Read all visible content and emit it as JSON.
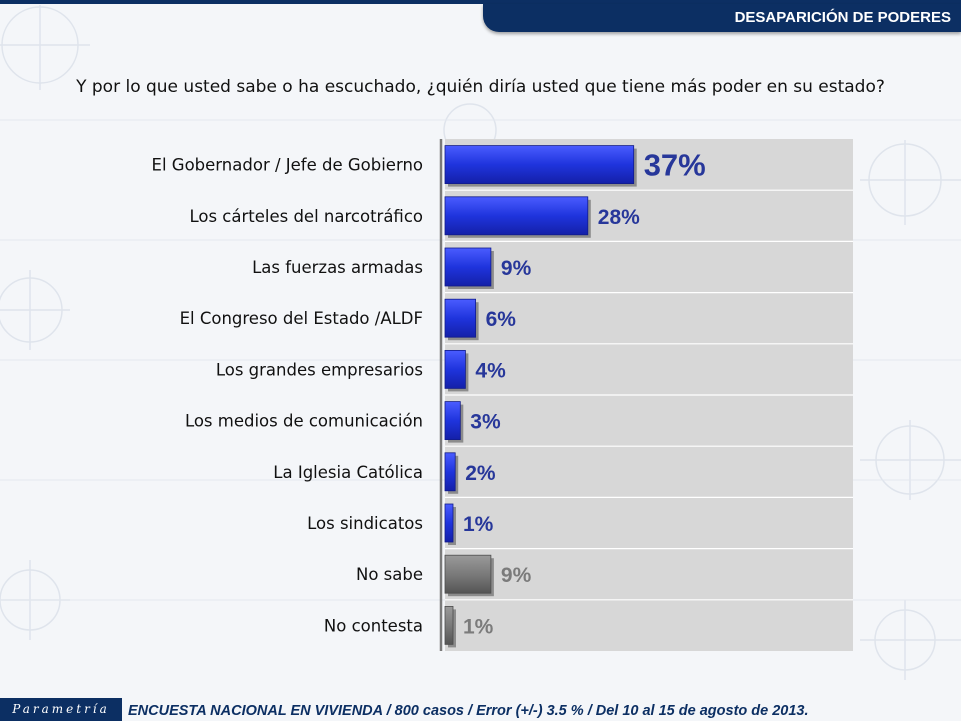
{
  "header": {
    "section_title": "DESAPARICIÓN DE PODERES"
  },
  "question": "Y por lo que usted sabe o ha escuchado, ¿quién diría usted que tiene más poder en su estado?",
  "chart_data": {
    "type": "bar",
    "orientation": "horizontal",
    "title": "Y por lo que usted sabe o ha escuchado, ¿quién diría usted que tiene más poder en su estado?",
    "xlabel": "",
    "ylabel": "",
    "xlim": [
      0,
      80
    ],
    "value_suffix": "%",
    "categories": [
      "El Gobernador / Jefe de Gobierno",
      "Los cárteles del narcotráfico",
      "Las fuerzas armadas",
      "El Congreso del Estado /ALDF",
      "Los grandes empresarios",
      "Los medios de comunicación",
      "La Iglesia Católica",
      "Los sindicatos",
      "No sabe",
      "No contesta"
    ],
    "values": [
      37,
      28,
      9,
      6,
      4,
      3,
      2,
      1,
      9,
      1
    ],
    "labels": [
      "37%",
      "28%",
      "9%",
      "6%",
      "4%",
      "3%",
      "2%",
      "1%",
      "9%",
      "1%"
    ],
    "groups": [
      "answer",
      "answer",
      "answer",
      "answer",
      "answer",
      "answer",
      "answer",
      "answer",
      "non-response",
      "non-response"
    ],
    "colors": {
      "answer": "#1f34dd",
      "non-response": "#7a7a7a",
      "answer_label": "#27379a",
      "non_response_label": "#7b7b7b",
      "plot_background": "#d7d7d7"
    }
  },
  "footer": {
    "brand": "Parametría",
    "note": "ENCUESTA NACIONAL EN VIVIENDA / 800 casos / Error (+/-) 3.5 % / Del 10 al 15 de agosto de 2013."
  }
}
